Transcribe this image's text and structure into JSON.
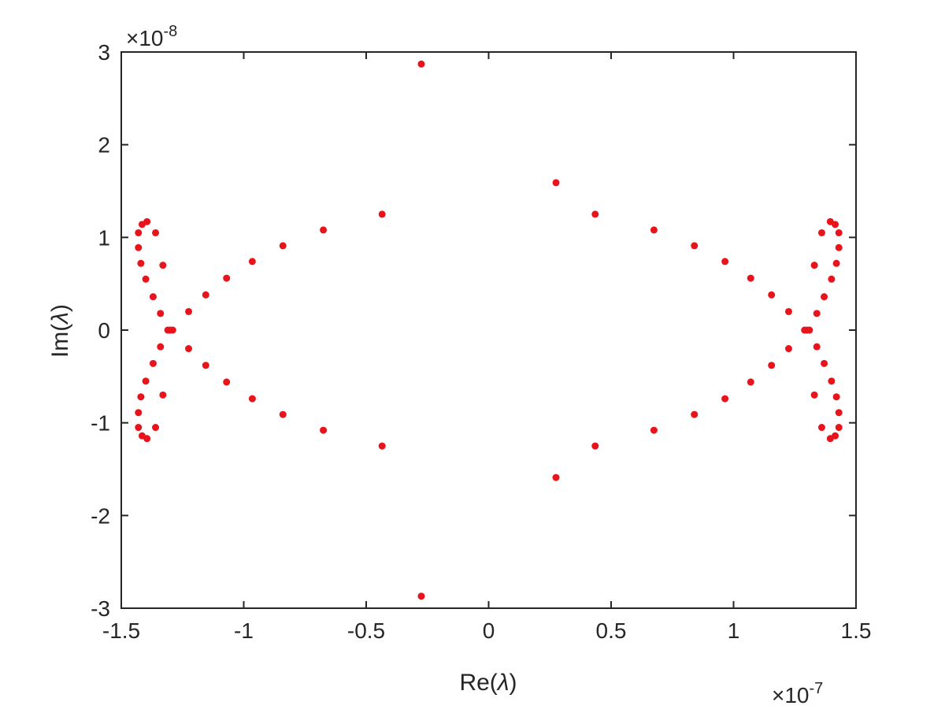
{
  "chart_data": {
    "type": "scatter",
    "title": "",
    "xlabel_base": "Re(",
    "xlabel_sym": "λ",
    "xlabel_close": ")",
    "ylabel_base": "Im(",
    "ylabel_sym": "λ",
    "ylabel_close": ")",
    "x_multiplier_base": "×10",
    "x_multiplier_exp": "-7",
    "y_multiplier_base": "×10",
    "y_multiplier_exp": "-8",
    "xlim": [
      -1.5,
      1.5
    ],
    "ylim": [
      -3,
      3
    ],
    "xticks": [
      -1.5,
      -1,
      -0.5,
      0,
      0.5,
      1,
      1.5
    ],
    "xtick_labels": [
      "-1.5",
      "-1",
      "-0.5",
      "0",
      "0.5",
      "1",
      "1.5"
    ],
    "yticks": [
      -3,
      -2,
      -1,
      0,
      1,
      2,
      3
    ],
    "ytick_labels": [
      "-3",
      "-2",
      "-1",
      "0",
      "1",
      "2",
      "3"
    ],
    "grid": false,
    "marker_color": "#e8141c",
    "axis_color": "#262626",
    "points": [
      [
        -0.275,
        2.87
      ],
      [
        -0.275,
        -2.87
      ],
      [
        0.275,
        1.59
      ],
      [
        0.275,
        -1.59
      ],
      [
        -0.435,
        1.25
      ],
      [
        -0.435,
        -1.25
      ],
      [
        0.435,
        1.25
      ],
      [
        0.435,
        -1.25
      ],
      [
        -0.675,
        1.08
      ],
      [
        -0.675,
        -1.08
      ],
      [
        0.675,
        1.08
      ],
      [
        0.675,
        -1.08
      ],
      [
        -0.84,
        0.91
      ],
      [
        -0.84,
        -0.91
      ],
      [
        0.84,
        0.91
      ],
      [
        0.84,
        -0.91
      ],
      [
        -0.965,
        0.74
      ],
      [
        -0.965,
        -0.74
      ],
      [
        0.965,
        0.74
      ],
      [
        0.965,
        -0.74
      ],
      [
        -1.07,
        0.56
      ],
      [
        -1.07,
        -0.56
      ],
      [
        1.07,
        0.56
      ],
      [
        1.07,
        -0.56
      ],
      [
        -1.155,
        0.38
      ],
      [
        -1.155,
        -0.38
      ],
      [
        1.155,
        0.38
      ],
      [
        1.155,
        -0.38
      ],
      [
        -1.225,
        0.2
      ],
      [
        -1.225,
        -0.2
      ],
      [
        1.225,
        0.2
      ],
      [
        1.225,
        -0.2
      ],
      [
        -1.29,
        0.0
      ],
      [
        -1.3,
        0.0
      ],
      [
        -1.31,
        0.0
      ],
      [
        1.29,
        0.0
      ],
      [
        1.3,
        0.0
      ],
      [
        1.31,
        0.0
      ],
      [
        -1.34,
        0.18
      ],
      [
        -1.34,
        -0.18
      ],
      [
        1.34,
        0.18
      ],
      [
        1.34,
        -0.18
      ],
      [
        -1.37,
        0.36
      ],
      [
        -1.37,
        -0.36
      ],
      [
        1.37,
        0.36
      ],
      [
        1.37,
        -0.36
      ],
      [
        -1.4,
        0.55
      ],
      [
        -1.4,
        -0.55
      ],
      [
        1.4,
        0.55
      ],
      [
        1.4,
        -0.55
      ],
      [
        -1.42,
        0.72
      ],
      [
        -1.42,
        -0.72
      ],
      [
        1.42,
        0.72
      ],
      [
        1.42,
        -0.72
      ],
      [
        -1.43,
        0.89
      ],
      [
        -1.43,
        -0.89
      ],
      [
        1.43,
        0.89
      ],
      [
        1.43,
        -0.89
      ],
      [
        -1.43,
        1.05
      ],
      [
        -1.43,
        -1.05
      ],
      [
        1.43,
        1.05
      ],
      [
        1.43,
        -1.05
      ],
      [
        -1.415,
        1.14
      ],
      [
        -1.415,
        -1.14
      ],
      [
        1.415,
        1.14
      ],
      [
        1.415,
        -1.14
      ],
      [
        -1.395,
        1.17
      ],
      [
        -1.395,
        -1.17
      ],
      [
        1.395,
        1.17
      ],
      [
        1.395,
        -1.17
      ],
      [
        -1.36,
        1.05
      ],
      [
        -1.36,
        -1.05
      ],
      [
        1.36,
        1.05
      ],
      [
        1.36,
        -1.05
      ],
      [
        -1.33,
        0.7
      ],
      [
        -1.33,
        -0.7
      ],
      [
        1.33,
        0.7
      ],
      [
        1.33,
        -0.7
      ]
    ]
  }
}
